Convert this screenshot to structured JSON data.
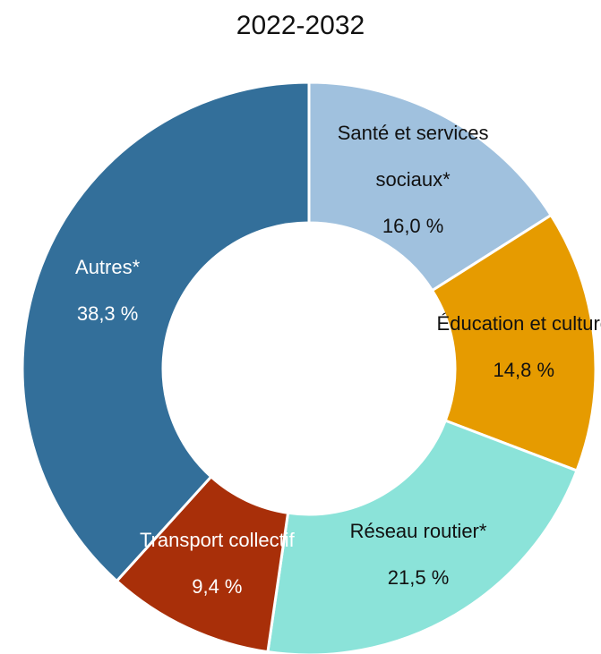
{
  "chart_data": {
    "type": "donut",
    "title": "2022-2032",
    "categories": [
      "Santé et services sociaux*",
      "Éducation et culture",
      "Réseau routier*",
      "Transport collectif",
      "Autres*"
    ],
    "values": [
      16.0,
      14.8,
      21.5,
      9.4,
      38.3
    ],
    "value_labels": [
      "16,0 %",
      "14,8 %",
      "21,5 %",
      "9,4 %",
      "38,3 %"
    ],
    "colors": [
      "#a0c1de",
      "#e69b00",
      "#8be3d9",
      "#a82f09",
      "#336f9a"
    ]
  }
}
